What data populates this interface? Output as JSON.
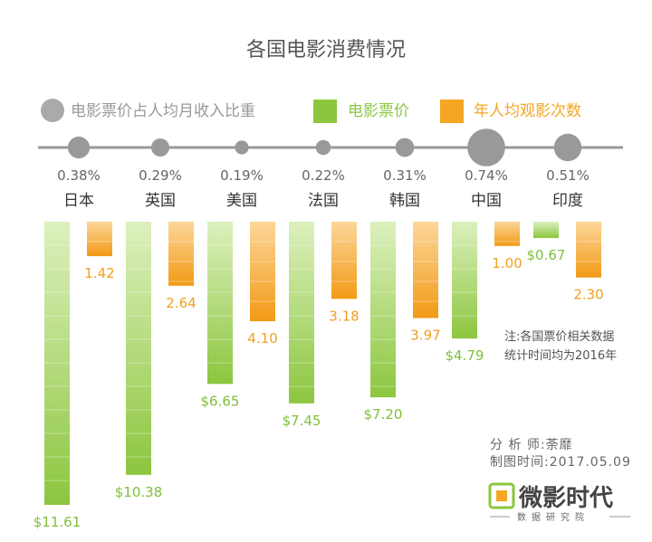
{
  "chart_data": {
    "type": "bar",
    "title": "各国电影消费情况",
    "legend": [
      {
        "key": "ratio",
        "label": "电影票价占人均月收入比重",
        "color": "#aaaaaa"
      },
      {
        "key": "price",
        "label": "电影票价",
        "color": "#8cc63f"
      },
      {
        "key": "count",
        "label": "年人均观影次数",
        "color": "#f5a623"
      }
    ],
    "categories": [
      "日本",
      "英国",
      "美国",
      "法国",
      "韩国",
      "中国",
      "印度"
    ],
    "series": [
      {
        "name": "电影票价",
        "values": [
          11.61,
          10.38,
          6.65,
          7.45,
          7.2,
          4.79,
          0.67
        ],
        "labels": [
          "$11.61",
          "$10.38",
          "$6.65",
          "$7.45",
          "$7.20",
          "$4.79",
          "$0.67"
        ]
      },
      {
        "name": "年人均观影次数",
        "values": [
          1.42,
          2.64,
          4.1,
          3.18,
          3.97,
          1.0,
          2.3
        ],
        "labels": [
          "1.42",
          "2.64",
          "4.10",
          "3.18",
          "3.97",
          "1.00",
          "2.30"
        ]
      },
      {
        "name": "电影票价占人均月收入比重",
        "values": [
          0.38,
          0.29,
          0.19,
          0.22,
          0.31,
          0.74,
          0.51
        ],
        "labels": [
          "0.38%",
          "0.29%",
          "0.19%",
          "0.22%",
          "0.31%",
          "0.74%",
          "0.51%"
        ]
      }
    ],
    "notes": [
      "注:各国票价相关数据",
      "统计时间均为2016年"
    ]
  },
  "credits": {
    "analyst": "分 析 师:荼靡",
    "date": "制图时间:2017.05.09"
  },
  "logo": {
    "main": "微影时代",
    "sub": "数据研究院"
  },
  "colors": {
    "price_light": "#d6eeb0",
    "price_dark": "#8cc63f",
    "count_light": "#fbd28a",
    "count_dark": "#f5a623",
    "timeline": "#999999"
  }
}
